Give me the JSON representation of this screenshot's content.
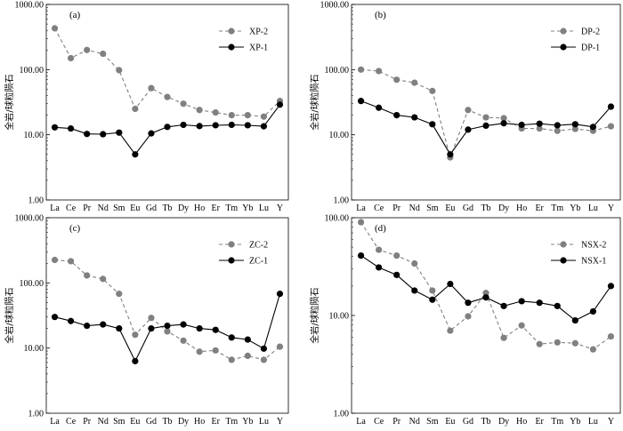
{
  "chart_data": [
    {
      "type": "line",
      "panel_label": "(a)",
      "ylabel": "全岩/球粒陨石",
      "yscale": "log",
      "ylim": [
        1,
        1000
      ],
      "yticks": [
        "1.00",
        "10.00",
        "100.00",
        "1000.00"
      ],
      "categories": [
        "La",
        "Ce",
        "Pr",
        "Nd",
        "Sm",
        "Eu",
        "Gd",
        "Tb",
        "Dy",
        "Ho",
        "Er",
        "Tm",
        "Yb",
        "Lu",
        "Y"
      ],
      "legend_position": "top-right",
      "series": [
        {
          "name": "XP-2",
          "style": "dashed",
          "color": "#808080",
          "values": [
            430,
            150,
            200,
            175,
            98,
            25,
            52,
            38,
            30,
            24,
            22,
            20,
            20,
            19,
            33
          ]
        },
        {
          "name": "XP-1",
          "style": "solid",
          "color": "#000000",
          "values": [
            13,
            12.5,
            10.3,
            10.2,
            10.8,
            5,
            10.5,
            13.2,
            14.2,
            13.6,
            14,
            14.2,
            14,
            13.5,
            29
          ]
        }
      ]
    },
    {
      "type": "line",
      "panel_label": "(b)",
      "ylabel": "全岩/球粒陨石",
      "yscale": "log",
      "ylim": [
        1,
        1000
      ],
      "yticks": [
        "1.00",
        "10.00",
        "100.00",
        "1000.00"
      ],
      "categories": [
        "La",
        "Ce",
        "Pr",
        "Nd",
        "Sm",
        "Eu",
        "Gd",
        "Tb",
        "Dy",
        "Ho",
        "Er",
        "Tm",
        "Yb",
        "Lu",
        "Y"
      ],
      "legend_position": "top-right",
      "series": [
        {
          "name": "DP-2",
          "style": "dashed",
          "color": "#808080",
          "values": [
            100,
            95,
            70,
            63,
            47,
            4.5,
            24,
            18.5,
            18,
            12.5,
            12.5,
            11.5,
            12.3,
            11.5,
            13.5
          ]
        },
        {
          "name": "DP-1",
          "style": "solid",
          "color": "#000000",
          "values": [
            33,
            26,
            20,
            18.5,
            14.5,
            5,
            12,
            13.8,
            15,
            14.2,
            14.8,
            14,
            14.5,
            13.2,
            27
          ]
        }
      ]
    },
    {
      "type": "line",
      "panel_label": "(c)",
      "ylabel": "全岩/球粒陨石",
      "yscale": "log",
      "ylim": [
        1,
        1000
      ],
      "yticks": [
        "1.00",
        "10.00",
        "100.00",
        "1000.00"
      ],
      "categories": [
        "La",
        "Ce",
        "Pr",
        "Nd",
        "Sm",
        "Eu",
        "Gd",
        "Tb",
        "Dy",
        "Ho",
        "Er",
        "Tm",
        "Yb",
        "Lu",
        "Y"
      ],
      "legend_position": "top-right",
      "series": [
        {
          "name": "ZC-2",
          "style": "dashed",
          "color": "#808080",
          "values": [
            225,
            215,
            130,
            115,
            68,
            16,
            29,
            18,
            13,
            8.8,
            9.2,
            6.6,
            7.6,
            6.6,
            10.5
          ]
        },
        {
          "name": "ZC-1",
          "style": "solid",
          "color": "#000000",
          "values": [
            30,
            26,
            22,
            23,
            20,
            6.3,
            20,
            22,
            23,
            20,
            19,
            14.5,
            13.5,
            9.8,
            68
          ]
        }
      ]
    },
    {
      "type": "line",
      "panel_label": "(d)",
      "ylabel": "全岩/球粒陨石",
      "yscale": "log",
      "ylim": [
        1,
        100
      ],
      "yticks": [
        "1.00",
        "10.00",
        "100.00"
      ],
      "categories": [
        "La",
        "Ce",
        "Pr",
        "Nd",
        "Sm",
        "Eu",
        "Gd",
        "Tb",
        "Dy",
        "Ho",
        "Er",
        "Tm",
        "Yb",
        "Lu",
        "Y"
      ],
      "legend_position": "top-right",
      "series": [
        {
          "name": "NSX-2",
          "style": "dashed",
          "color": "#808080",
          "values": [
            90,
            47,
            41,
            34,
            18,
            7,
            9.8,
            17,
            5.9,
            7.9,
            5.1,
            5.3,
            5.2,
            4.5,
            6.1
          ]
        },
        {
          "name": "NSX-1",
          "style": "solid",
          "color": "#000000",
          "values": [
            41,
            31,
            26,
            18,
            14.5,
            21,
            13.5,
            15.3,
            12.5,
            14,
            13.5,
            12.5,
            8.9,
            11,
            20
          ]
        }
      ]
    }
  ]
}
